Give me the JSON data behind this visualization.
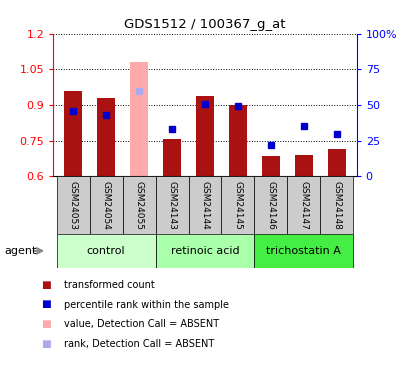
{
  "title": "GDS1512 / 100367_g_at",
  "samples": [
    "GSM24053",
    "GSM24054",
    "GSM24055",
    "GSM24143",
    "GSM24144",
    "GSM24145",
    "GSM24146",
    "GSM24147",
    "GSM24148"
  ],
  "bar_values": [
    0.96,
    0.93,
    1.08,
    0.755,
    0.94,
    0.9,
    0.685,
    0.69,
    0.715
  ],
  "bar_absent": [
    false,
    false,
    true,
    false,
    false,
    false,
    false,
    false,
    false
  ],
  "rank_values": [
    46,
    43,
    60,
    33,
    51,
    49,
    22,
    35,
    30
  ],
  "rank_absent": [
    false,
    false,
    true,
    false,
    false,
    false,
    false,
    false,
    false
  ],
  "ylim": [
    0.6,
    1.2
  ],
  "ylim_right": [
    0,
    100
  ],
  "yticks_left": [
    0.6,
    0.75,
    0.9,
    1.05,
    1.2
  ],
  "yticks_right": [
    0,
    25,
    50,
    75,
    100
  ],
  "groups": [
    {
      "label": "control",
      "indices": [
        0,
        1,
        2
      ],
      "color": "#ccffcc"
    },
    {
      "label": "retinoic acid",
      "indices": [
        3,
        4,
        5
      ],
      "color": "#aaffaa"
    },
    {
      "label": "trichostatin A",
      "indices": [
        6,
        7,
        8
      ],
      "color": "#44ee44"
    }
  ],
  "bar_color_normal": "#aa1111",
  "bar_color_absent": "#ffaaaa",
  "rank_color_normal": "#0000cc",
  "rank_color_absent": "#aaaaee",
  "bar_width": 0.55,
  "rank_marker_size": 5,
  "fig_width": 4.1,
  "fig_height": 3.75,
  "dpi": 100
}
